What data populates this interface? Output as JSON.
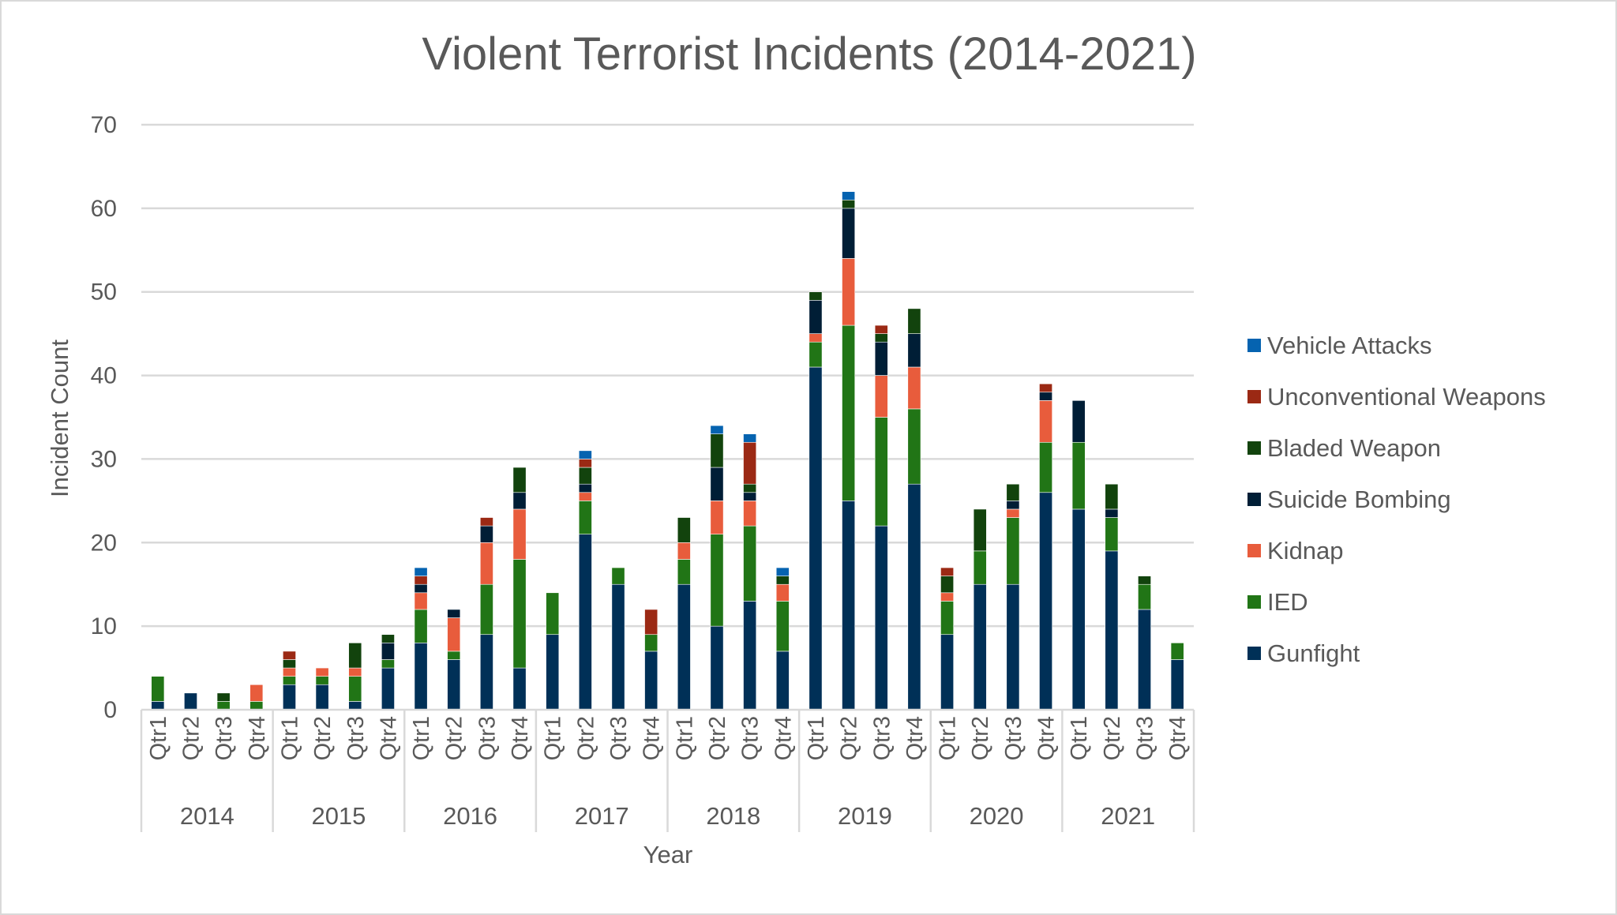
{
  "chart_data": {
    "type": "bar",
    "stacked": true,
    "title": "Violent Terrorist Incidents (2014-2021)",
    "xlabel": "Year",
    "ylabel": "Incident Count",
    "ylim": [
      0,
      70
    ],
    "yticks": [
      0,
      10,
      20,
      30,
      40,
      50,
      60,
      70
    ],
    "grid": true,
    "legend_position": "right",
    "groups": [
      "2014",
      "2015",
      "2016",
      "2017",
      "2018",
      "2019",
      "2020",
      "2021"
    ],
    "subcategories": [
      "Qtr1",
      "Qtr2",
      "Qtr3",
      "Qtr4"
    ],
    "series": [
      {
        "name": "Gunfight",
        "color": "#003057",
        "values": [
          1,
          2,
          0,
          0,
          3,
          3,
          1,
          5,
          8,
          6,
          9,
          5,
          9,
          21,
          15,
          7,
          15,
          10,
          13,
          7,
          41,
          25,
          22,
          27,
          9,
          15,
          15,
          26,
          24,
          19,
          12,
          6
        ]
      },
      {
        "name": "IED",
        "color": "#217516",
        "values": [
          3,
          0,
          1,
          1,
          1,
          1,
          3,
          1,
          4,
          1,
          6,
          13,
          5,
          4,
          2,
          2,
          3,
          11,
          9,
          6,
          3,
          21,
          13,
          9,
          4,
          4,
          8,
          6,
          8,
          4,
          3,
          2
        ]
      },
      {
        "name": "Kidnap",
        "color": "#e85c3c",
        "values": [
          0,
          0,
          0,
          2,
          1,
          1,
          1,
          0,
          2,
          4,
          5,
          6,
          0,
          1,
          0,
          0,
          2,
          4,
          3,
          2,
          1,
          8,
          5,
          5,
          1,
          0,
          1,
          5,
          0,
          0,
          0,
          0
        ]
      },
      {
        "name": "Suicide Bombing",
        "color": "#001e36",
        "values": [
          0,
          0,
          0,
          0,
          0,
          0,
          0,
          2,
          1,
          1,
          2,
          2,
          0,
          1,
          0,
          0,
          0,
          4,
          1,
          0,
          4,
          6,
          4,
          4,
          0,
          0,
          1,
          1,
          5,
          1,
          0,
          0
        ]
      },
      {
        "name": "Bladed Weapon",
        "color": "#12430d",
        "values": [
          0,
          0,
          1,
          0,
          1,
          0,
          3,
          1,
          0,
          0,
          0,
          3,
          0,
          2,
          0,
          0,
          3,
          4,
          1,
          1,
          1,
          1,
          1,
          3,
          2,
          5,
          2,
          0,
          0,
          3,
          1,
          0
        ]
      },
      {
        "name": "Unconventional Weapons",
        "color": "#9b2914",
        "values": [
          0,
          0,
          0,
          0,
          1,
          0,
          0,
          0,
          1,
          0,
          1,
          0,
          0,
          1,
          0,
          3,
          0,
          0,
          5,
          0,
          0,
          0,
          1,
          0,
          1,
          0,
          0,
          1,
          0,
          0,
          0,
          0
        ]
      },
      {
        "name": "Vehicle Attacks",
        "color": "#0563b0",
        "values": [
          0,
          0,
          0,
          0,
          0,
          0,
          0,
          0,
          1,
          0,
          0,
          0,
          0,
          1,
          0,
          0,
          0,
          1,
          1,
          1,
          0,
          1,
          0,
          0,
          0,
          0,
          0,
          0,
          0,
          0,
          0,
          0
        ]
      }
    ]
  }
}
